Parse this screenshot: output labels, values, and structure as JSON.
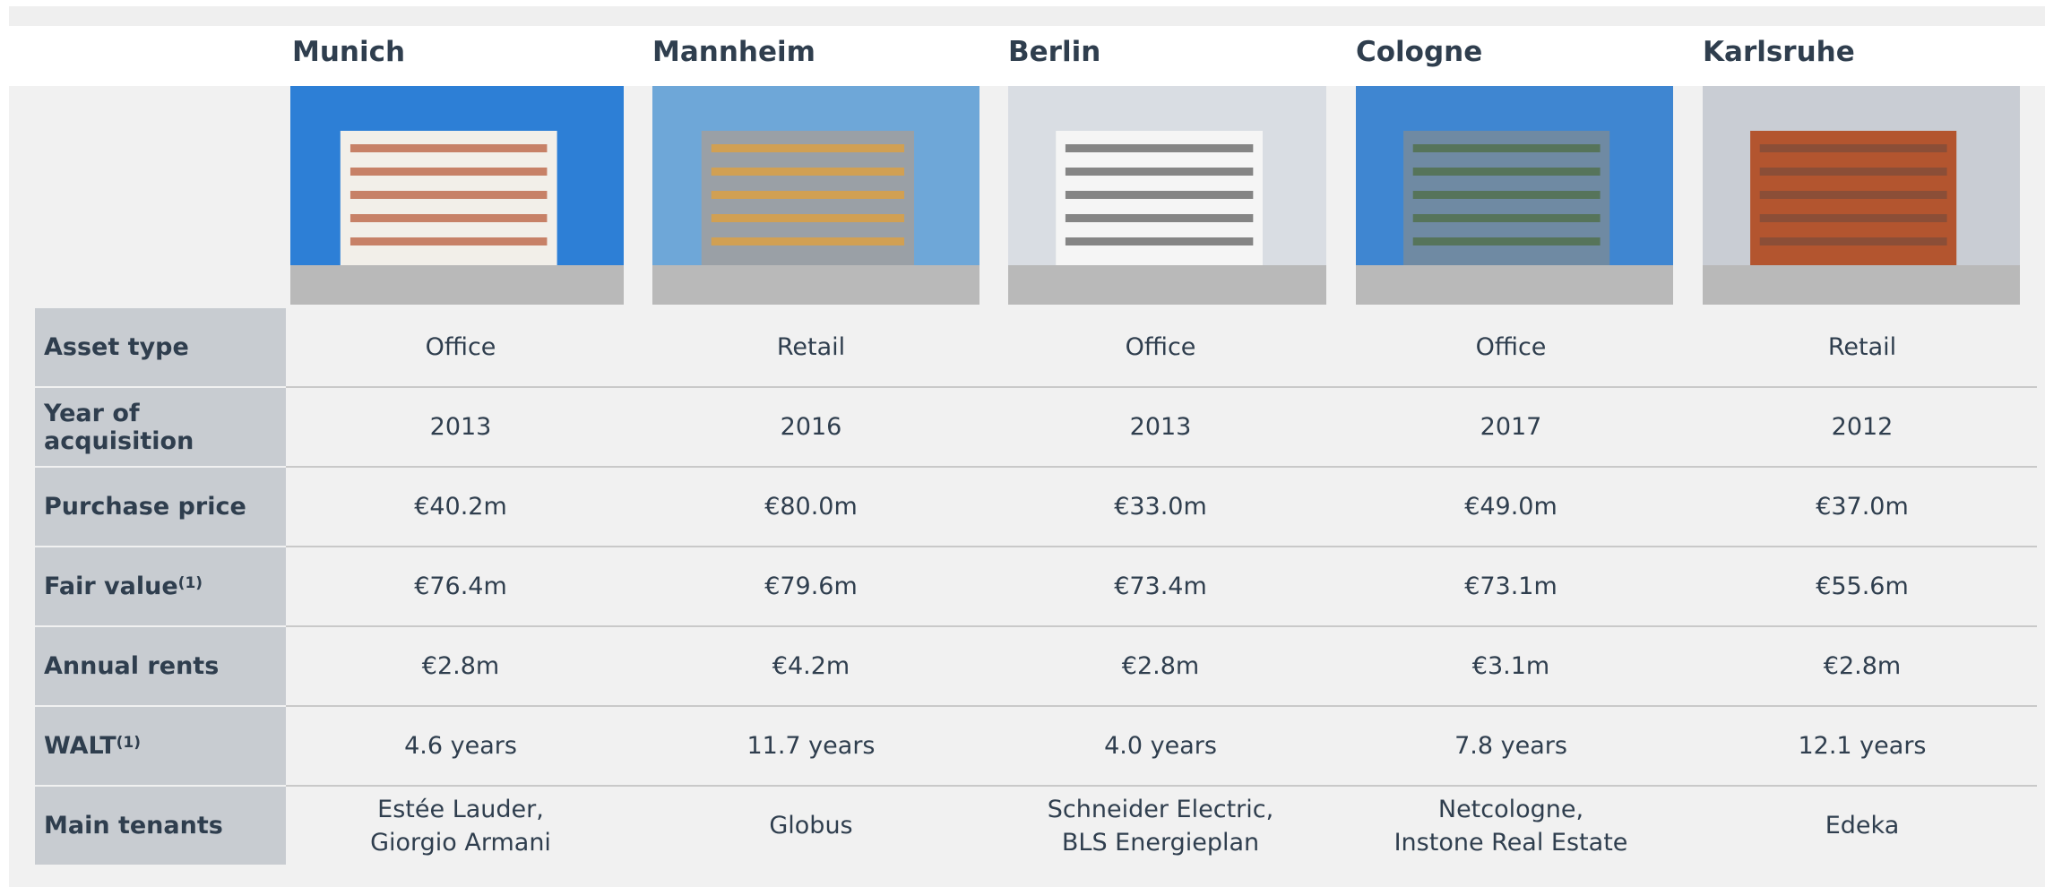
{
  "table": {
    "columns": [
      "Munich",
      "Mannheim",
      "Berlin",
      "Cologne",
      "Karlsruhe"
    ],
    "rows": [
      {
        "label": "Asset type",
        "values": [
          "Office",
          "Retail",
          "Office",
          "Office",
          "Retail"
        ]
      },
      {
        "label": "Year of acquisition",
        "values": [
          "2013",
          "2016",
          "2013",
          "2017",
          "2012"
        ]
      },
      {
        "label": "Purchase price",
        "values": [
          "€40.2m",
          "€80.0m",
          "€33.0m",
          "€49.0m",
          "€37.0m"
        ]
      },
      {
        "label": "Fair value",
        "note": "(1)",
        "values": [
          "€76.4m",
          "€79.6m",
          "€73.4m",
          "€73.1m",
          "€55.6m"
        ]
      },
      {
        "label": "Annual rents",
        "values": [
          "€2.8m",
          "€4.2m",
          "€2.8m",
          "€3.1m",
          "€2.8m"
        ]
      },
      {
        "label": "WALT",
        "note": "(1)",
        "values": [
          "4.6 years",
          "11.7 years",
          "4.0 years",
          "7.8 years",
          "12.1 years"
        ]
      },
      {
        "label": "Main tenants",
        "values": [
          [
            "Estée Lauder,",
            "Giorgio Armani"
          ],
          [
            "Globus"
          ],
          [
            "Schneider Electric,",
            "BLS Energieplan"
          ],
          [
            "Netcologne,",
            "Instone Real Estate"
          ],
          [
            "Edeka"
          ]
        ]
      }
    ]
  }
}
